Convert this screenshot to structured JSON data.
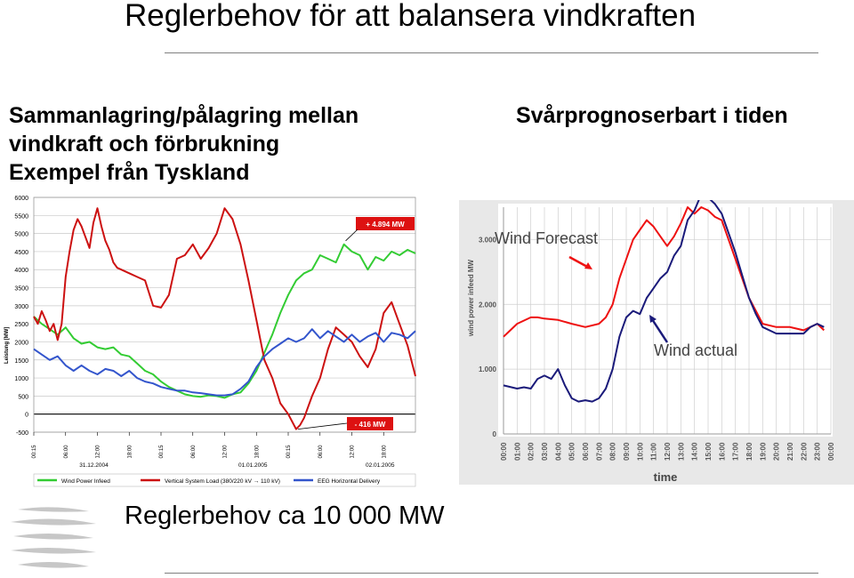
{
  "slide": {
    "title": "Reglerbehov för att balansera vindkraften",
    "left_heading": [
      "Sammanlagring/pålagring mellan",
      "vindkraft och förbrukning",
      "Exempel från Tyskland"
    ],
    "right_heading": "Svårprognoserbart i tiden",
    "footer": "Reglerbehov ca 10 000 MW"
  },
  "colors": {
    "green": "#33cc33",
    "red": "#cc1111",
    "blue": "#3355cc",
    "navy": "#1a1a7a",
    "forecast_red": "#ee1111"
  },
  "chart_data": [
    {
      "type": "line",
      "ylabel": "Leistung [MW]",
      "ylim": [
        -500,
        6000
      ],
      "yticks": [
        "6000",
        "5500",
        "5000",
        "4500",
        "4000",
        "3500",
        "3000",
        "2500",
        "2000",
        "1500",
        "1000",
        "500",
        "0",
        "-500"
      ],
      "xticks": [
        "00:15",
        "06:00",
        "12:00",
        "18:00",
        "00:15",
        "06:00",
        "12:00",
        "18:00",
        "00:15",
        "06:00",
        "12:00",
        "18:00"
      ],
      "dates": [
        "31.12.2004",
        "01.01.2005",
        "02.01.2005"
      ],
      "annotations": [
        "+ 4.894 MW",
        "- 416 MW"
      ],
      "series": [
        {
          "name": "Wind Power Infeed",
          "color": "#33cc33",
          "points": [
            [
              0,
              2700
            ],
            [
              2,
              2500
            ],
            [
              4,
              2350
            ],
            [
              6,
              2200
            ],
            [
              8,
              2400
            ],
            [
              10,
              2100
            ],
            [
              12,
              1950
            ],
            [
              14,
              2000
            ],
            [
              16,
              1850
            ],
            [
              18,
              1800
            ],
            [
              20,
              1850
            ],
            [
              22,
              1650
            ],
            [
              24,
              1600
            ],
            [
              26,
              1400
            ],
            [
              28,
              1200
            ],
            [
              30,
              1100
            ],
            [
              32,
              900
            ],
            [
              34,
              750
            ],
            [
              36,
              650
            ],
            [
              38,
              550
            ],
            [
              40,
              500
            ],
            [
              42,
              480
            ],
            [
              44,
              520
            ],
            [
              46,
              500
            ],
            [
              48,
              450
            ],
            [
              50,
              550
            ],
            [
              52,
              600
            ],
            [
              54,
              850
            ],
            [
              56,
              1200
            ],
            [
              58,
              1700
            ],
            [
              60,
              2200
            ],
            [
              62,
              2800
            ],
            [
              64,
              3300
            ],
            [
              66,
              3700
            ],
            [
              68,
              3900
            ],
            [
              70,
              4000
            ],
            [
              72,
              4400
            ],
            [
              74,
              4300
            ],
            [
              76,
              4200
            ],
            [
              78,
              4700
            ],
            [
              80,
              4500
            ],
            [
              82,
              4400
            ],
            [
              84,
              4000
            ],
            [
              86,
              4350
            ],
            [
              88,
              4250
            ],
            [
              90,
              4500
            ],
            [
              92,
              4400
            ],
            [
              94,
              4550
            ],
            [
              96,
              4450
            ]
          ]
        },
        {
          "name": "Vertical System Load (380/220 kV → 110 kV)",
          "color": "#cc1111",
          "points": [
            [
              0,
              2700
            ],
            [
              1,
              2500
            ],
            [
              2,
              2850
            ],
            [
              3,
              2600
            ],
            [
              4,
              2300
            ],
            [
              5,
              2500
            ],
            [
              6,
              2050
            ],
            [
              7,
              2500
            ],
            [
              8,
              3800
            ],
            [
              9,
              4500
            ],
            [
              10,
              5100
            ],
            [
              11,
              5400
            ],
            [
              12,
              5200
            ],
            [
              13,
              4900
            ],
            [
              14,
              4600
            ],
            [
              15,
              5300
            ],
            [
              16,
              5700
            ],
            [
              17,
              5200
            ],
            [
              18,
              4800
            ],
            [
              19,
              4550
            ],
            [
              20,
              4200
            ],
            [
              21,
              4050
            ],
            [
              22,
              4000
            ],
            [
              24,
              3900
            ],
            [
              26,
              3800
            ],
            [
              28,
              3700
            ],
            [
              30,
              3000
            ],
            [
              32,
              2950
            ],
            [
              34,
              3300
            ],
            [
              36,
              4300
            ],
            [
              38,
              4400
            ],
            [
              40,
              4700
            ],
            [
              42,
              4300
            ],
            [
              44,
              4600
            ],
            [
              46,
              5000
            ],
            [
              48,
              5700
            ],
            [
              50,
              5400
            ],
            [
              52,
              4700
            ],
            [
              54,
              3700
            ],
            [
              56,
              2600
            ],
            [
              58,
              1500
            ],
            [
              60,
              1000
            ],
            [
              62,
              300
            ],
            [
              64,
              0
            ],
            [
              66,
              -416
            ],
            [
              67,
              -300
            ],
            [
              68,
              -100
            ],
            [
              70,
              500
            ],
            [
              72,
              1000
            ],
            [
              74,
              1800
            ],
            [
              76,
              2400
            ],
            [
              78,
              2200
            ],
            [
              80,
              2000
            ],
            [
              82,
              1600
            ],
            [
              84,
              1300
            ],
            [
              86,
              1800
            ],
            [
              88,
              2800
            ],
            [
              90,
              3100
            ],
            [
              92,
              2500
            ],
            [
              94,
              1900
            ],
            [
              96,
              1050
            ]
          ]
        },
        {
          "name": "EEG Horizontal Delivery",
          "color": "#3355cc",
          "points": [
            [
              0,
              1800
            ],
            [
              2,
              1650
            ],
            [
              4,
              1500
            ],
            [
              6,
              1600
            ],
            [
              8,
              1350
            ],
            [
              10,
              1200
            ],
            [
              12,
              1350
            ],
            [
              14,
              1200
            ],
            [
              16,
              1100
            ],
            [
              18,
              1250
            ],
            [
              20,
              1200
            ],
            [
              22,
              1050
            ],
            [
              24,
              1200
            ],
            [
              26,
              1000
            ],
            [
              28,
              900
            ],
            [
              30,
              850
            ],
            [
              32,
              750
            ],
            [
              34,
              700
            ],
            [
              36,
              650
            ],
            [
              38,
              650
            ],
            [
              40,
              600
            ],
            [
              42,
              580
            ],
            [
              44,
              550
            ],
            [
              46,
              520
            ],
            [
              48,
              520
            ],
            [
              50,
              550
            ],
            [
              52,
              700
            ],
            [
              54,
              900
            ],
            [
              56,
              1300
            ],
            [
              58,
              1600
            ],
            [
              60,
              1800
            ],
            [
              62,
              1950
            ],
            [
              64,
              2100
            ],
            [
              66,
              2000
            ],
            [
              68,
              2100
            ],
            [
              70,
              2350
            ],
            [
              72,
              2100
            ],
            [
              74,
              2300
            ],
            [
              76,
              2150
            ],
            [
              78,
              2000
            ],
            [
              80,
              2200
            ],
            [
              82,
              2000
            ],
            [
              84,
              2150
            ],
            [
              86,
              2250
            ],
            [
              88,
              2000
            ],
            [
              90,
              2250
            ],
            [
              92,
              2200
            ],
            [
              94,
              2100
            ],
            [
              96,
              2300
            ]
          ]
        }
      ]
    },
    {
      "type": "line",
      "xlabel": "time",
      "ylabel": "wind power infeed MW",
      "ylim": [
        0,
        3500
      ],
      "yticks": [
        0,
        1000,
        2000,
        3000
      ],
      "ytick_labels": [
        "0",
        "1.000",
        "2.000",
        "3.000"
      ],
      "xticks": [
        "00:00",
        "01:00",
        "02:00",
        "03:00",
        "04:00",
        "05:00",
        "06:00",
        "07:00",
        "08:00",
        "09:00",
        "10:00",
        "11:00",
        "12:00",
        "13:00",
        "14:00",
        "15:00",
        "16:00",
        "17:00",
        "18:00",
        "19:00",
        "20:00",
        "21:00",
        "22:00",
        "23:00",
        "00:00"
      ],
      "series": [
        {
          "name": "Wind Forecast",
          "color": "#ee1111",
          "points": [
            [
              0,
              1500
            ],
            [
              0.5,
              1600
            ],
            [
              1,
              1700
            ],
            [
              1.5,
              1750
            ],
            [
              2,
              1800
            ],
            [
              2.5,
              1800
            ],
            [
              3,
              1780
            ],
            [
              4,
              1760
            ],
            [
              5,
              1700
            ],
            [
              6,
              1650
            ],
            [
              7,
              1700
            ],
            [
              7.5,
              1800
            ],
            [
              8,
              2000
            ],
            [
              8.5,
              2400
            ],
            [
              9,
              2700
            ],
            [
              9.5,
              3000
            ],
            [
              10,
              3150
            ],
            [
              10.5,
              3300
            ],
            [
              11,
              3200
            ],
            [
              11.5,
              3050
            ],
            [
              12,
              2900
            ],
            [
              12.5,
              3050
            ],
            [
              13,
              3250
            ],
            [
              13.5,
              3500
            ],
            [
              14,
              3400
            ],
            [
              14.5,
              3500
            ],
            [
              15,
              3450
            ],
            [
              15.5,
              3350
            ],
            [
              16,
              3300
            ],
            [
              16.5,
              3000
            ],
            [
              17,
              2700
            ],
            [
              17.5,
              2400
            ],
            [
              18,
              2100
            ],
            [
              18.5,
              1900
            ],
            [
              19,
              1700
            ],
            [
              20,
              1650
            ],
            [
              21,
              1650
            ],
            [
              22,
              1600
            ],
            [
              23,
              1700
            ],
            [
              23.5,
              1600
            ]
          ]
        },
        {
          "name": "Wind actual",
          "color": "#1a1a7a",
          "points": [
            [
              0,
              750
            ],
            [
              1,
              700
            ],
            [
              1.5,
              720
            ],
            [
              2,
              700
            ],
            [
              2.5,
              850
            ],
            [
              3,
              900
            ],
            [
              3.5,
              850
            ],
            [
              4,
              1000
            ],
            [
              4.5,
              750
            ],
            [
              5,
              550
            ],
            [
              5.5,
              500
            ],
            [
              6,
              520
            ],
            [
              6.5,
              500
            ],
            [
              7,
              550
            ],
            [
              7.5,
              700
            ],
            [
              8,
              1000
            ],
            [
              8.5,
              1500
            ],
            [
              9,
              1800
            ],
            [
              9.5,
              1900
            ],
            [
              10,
              1850
            ],
            [
              10.5,
              2100
            ],
            [
              11,
              2250
            ],
            [
              11.5,
              2400
            ],
            [
              12,
              2500
            ],
            [
              12.5,
              2750
            ],
            [
              13,
              2900
            ],
            [
              13.5,
              3300
            ],
            [
              14,
              3450
            ],
            [
              14.5,
              3700
            ],
            [
              15,
              3650
            ],
            [
              15.5,
              3550
            ],
            [
              16,
              3400
            ],
            [
              16.5,
              3100
            ],
            [
              17,
              2800
            ],
            [
              17.5,
              2450
            ],
            [
              18,
              2100
            ],
            [
              18.5,
              1850
            ],
            [
              19,
              1650
            ],
            [
              20,
              1550
            ],
            [
              21,
              1550
            ],
            [
              22,
              1550
            ],
            [
              22.5,
              1650
            ],
            [
              23,
              1700
            ],
            [
              23.5,
              1650
            ]
          ]
        }
      ]
    }
  ]
}
